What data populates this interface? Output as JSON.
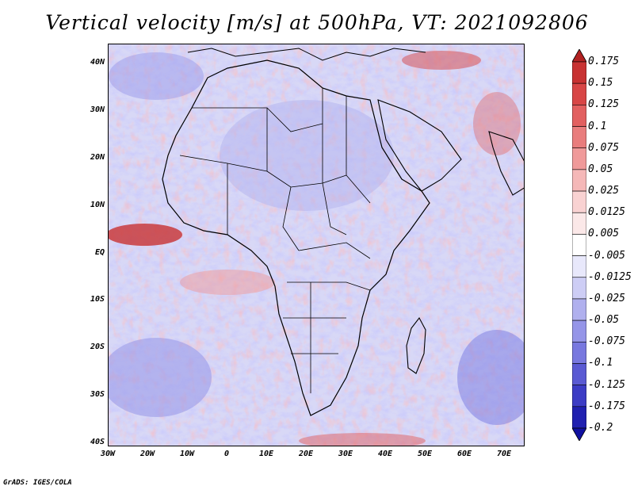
{
  "title": "Vertical velocity [m/s] at 500hPa, VT: 2021092806",
  "credit": "GrADS: IGES/COLA",
  "map": {
    "lon_range": [
      -30,
      75
    ],
    "lat_range": [
      -40,
      45
    ],
    "lat_ticks": [
      "40N",
      "30N",
      "20N",
      "10N",
      "EQ",
      "10S",
      "20S",
      "30S",
      "40S"
    ],
    "lon_ticks": [
      "30W",
      "20W",
      "10W",
      "0",
      "10E",
      "20E",
      "30E",
      "40E",
      "50E",
      "60E",
      "70E"
    ],
    "coastlines": "black",
    "borders": "black"
  },
  "colorbar": {
    "levels": [
      "0.175",
      "0.15",
      "0.125",
      "0.1",
      "0.075",
      "0.05",
      "0.025",
      "0.0125",
      "0.005",
      "-0.005",
      "-0.0125",
      "-0.025",
      "-0.05",
      "-0.075",
      "-0.1",
      "-0.125",
      "-0.175",
      "-0.2"
    ],
    "colors": [
      "#b22222",
      "#c83232",
      "#d84646",
      "#e26060",
      "#e97d7d",
      "#f09a9a",
      "#f5b8b8",
      "#f9d2d2",
      "#fbe8e8",
      "#ffffff",
      "#e8e8fb",
      "#cdcdf5",
      "#b0b0ee",
      "#9595e8",
      "#7878df",
      "#5a5ad3",
      "#3c3cc5",
      "#2020b0",
      "#1010a0"
    ]
  }
}
